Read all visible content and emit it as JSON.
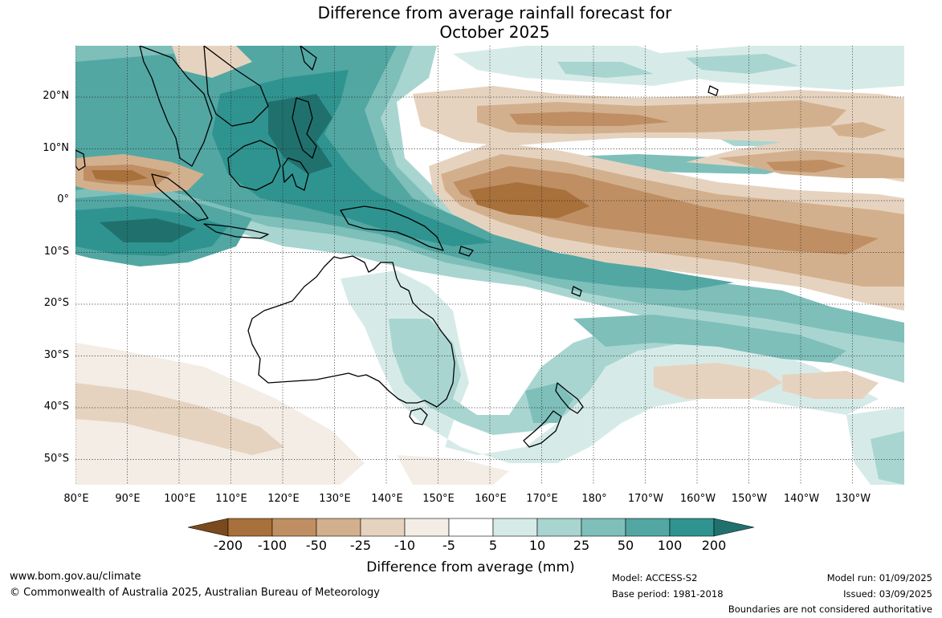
{
  "title_line1": "Difference from average rainfall forecast for",
  "title_line2": "October 2025",
  "latitude_labels": [
    "20°N",
    "10°N",
    "0°",
    "10°S",
    "20°S",
    "30°S",
    "40°S",
    "50°S"
  ],
  "longitude_labels": [
    "80°E",
    "90°E",
    "100°E",
    "110°E",
    "120°E",
    "130°E",
    "140°E",
    "150°E",
    "160°E",
    "170°E",
    "180°",
    "170°W",
    "160°W",
    "150°W",
    "140°W",
    "130°W"
  ],
  "colorbar": {
    "title": "Difference from average (mm)",
    "tick_labels": [
      "-200",
      "-100",
      "-50",
      "-25",
      "-10",
      "-5",
      "5",
      "10",
      "25",
      "50",
      "100",
      "200"
    ],
    "colors": [
      "#7a4a1e",
      "#a8703a",
      "#bf8f63",
      "#d3b08d",
      "#e6d3bf",
      "#f3ede6",
      "#ffffff",
      "#d6ebe8",
      "#a9d5d1",
      "#7ebfba",
      "#52a7a3",
      "#2f9490",
      "#20716e"
    ]
  },
  "footer": {
    "website": "www.bom.gov.au/climate",
    "copyright": "© Commonwealth of Australia 2025, Australian Bureau of Meteorology",
    "model": "Model: ACCESS-S2",
    "base_period": "Base period: 1981-2018",
    "model_run": "Model run: 01/09/2025",
    "issued": "Issued: 03/09/2025",
    "disclaimer": "Boundaries are not considered authoritative"
  }
}
